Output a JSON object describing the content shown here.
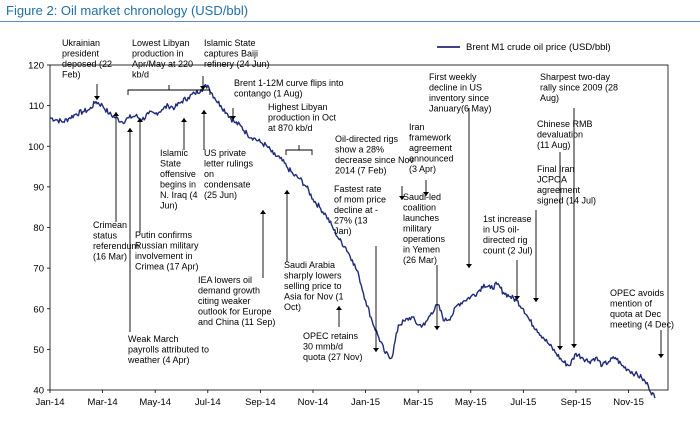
{
  "title": "Figure 2: Oil market chronology (USD/bbl)",
  "chart_data": {
    "type": "line",
    "title": "Figure 2: Oil market chronology (USD/bbl)",
    "ylim": [
      40,
      120
    ],
    "yticks": [
      40,
      50,
      60,
      70,
      80,
      90,
      100,
      110,
      120
    ],
    "x_tick_labels": [
      "Jan-14",
      "Mar-14",
      "May-14",
      "Jul-14",
      "Sep-14",
      "Nov-14",
      "Jan-15",
      "Mar-15",
      "May-15",
      "Jul-15",
      "Sep-15",
      "Nov-15"
    ],
    "legend_position": "top-right",
    "grid": false,
    "color": "#1f2a7a",
    "series": [
      {
        "name": "Brent M1 crude oil price (USD/bbl)",
        "x_months": [
          0,
          0.25,
          0.5,
          0.75,
          1,
          1.25,
          1.5,
          1.75,
          2,
          2.25,
          2.5,
          2.75,
          3,
          3.25,
          3.5,
          3.75,
          4,
          4.25,
          4.5,
          4.75,
          5,
          5.25,
          5.5,
          5.75,
          6,
          6.25,
          6.5,
          6.75,
          7,
          7.25,
          7.5,
          7.75,
          8,
          8.25,
          8.5,
          8.75,
          9,
          9.25,
          9.5,
          9.75,
          10,
          10.25,
          10.5,
          10.75,
          11,
          11.25,
          11.5,
          11.75,
          12,
          12.25,
          12.5,
          12.75,
          13,
          13.25,
          13.5,
          13.75,
          14,
          14.25,
          14.5,
          14.75,
          15,
          15.25,
          15.5,
          15.75,
          16,
          16.25,
          16.5,
          16.75,
          17,
          17.25,
          17.5,
          17.75,
          18,
          18.25,
          18.5,
          18.75,
          19,
          19.25,
          19.5,
          19.75,
          20,
          20.25,
          20.5,
          20.75,
          21,
          21.25,
          21.5,
          21.75,
          22,
          22.25,
          22.5,
          22.75,
          23
        ],
        "values": [
          107,
          106.5,
          106,
          107,
          108,
          108.5,
          109,
          111,
          110,
          108,
          107,
          106,
          107,
          107.5,
          106.5,
          108,
          108,
          109,
          110,
          109.5,
          111,
          112,
          113,
          114,
          115,
          112,
          110,
          108,
          106,
          105,
          103,
          102,
          101,
          100,
          98,
          97,
          95,
          93,
          92,
          90,
          87,
          85,
          83,
          80,
          77,
          75,
          72,
          68,
          62,
          57,
          53,
          49,
          48,
          56,
          57,
          58,
          56,
          56,
          59,
          61,
          57,
          58,
          61,
          62,
          63,
          64,
          66,
          65,
          66,
          64,
          63,
          62,
          60,
          57,
          55,
          53,
          51,
          49,
          47,
          46,
          49,
          48,
          47,
          48,
          46,
          47,
          48,
          46,
          45,
          44,
          43,
          41,
          38
        ],
        "peaks_note": ""
      }
    ],
    "annotations": [
      {
        "id": "ukraine",
        "text": [
          "Ukrainian",
          "president",
          "deposed (22",
          "Feb)"
        ]
      },
      {
        "id": "crimean-ref",
        "text": [
          "Crimean",
          "status",
          "referendum",
          "(16 Mar)"
        ]
      },
      {
        "id": "weak-march",
        "text": [
          "Weak March",
          "payrolls attributed to",
          "weather (4 Apr)"
        ]
      },
      {
        "id": "putin",
        "text": [
          "Putin confirms",
          "Russian military",
          "involvement in",
          "Crimea (17 Apr)"
        ]
      },
      {
        "id": "libya-low",
        "text": [
          "Lowest Libyan",
          "production in",
          "Apr/May at 220",
          "kb/d"
        ]
      },
      {
        "id": "is-offensive",
        "text": [
          "Islamic",
          "State",
          "offensive",
          "begins in",
          "N. Iraq (4",
          "Jun)"
        ]
      },
      {
        "id": "is-baiji",
        "text": [
          "Islamic State",
          "captures Baiji",
          "refinery (24 Jun)"
        ]
      },
      {
        "id": "us-private",
        "text": [
          "US private",
          "letter rulings",
          "on",
          "condensate",
          "(25 Jun)"
        ]
      },
      {
        "id": "contango",
        "text": [
          "Brent 1-12M curve flips into",
          "contango (1 Aug)"
        ]
      },
      {
        "id": "libya-high",
        "text": [
          "Highest Libyan",
          "production in Oct",
          "at 870 kb/d"
        ]
      },
      {
        "id": "iea",
        "text": [
          "IEA lowers oil",
          "demand growth",
          "citing weaker",
          "outlook for Europe",
          "and China (11 Sep)"
        ]
      },
      {
        "id": "saudi-price",
        "text": [
          "Saudi Arabia",
          "sharply lowers",
          "selling price to",
          "Asia for Nov (1",
          "Oct)"
        ]
      },
      {
        "id": "opec-retains",
        "text": [
          "OPEC retains",
          "30 mmb/d",
          "quota (27 Nov)"
        ]
      },
      {
        "id": "rigs-28",
        "text": [
          "Oil-directed rigs",
          "show a 28%",
          "decrease since Nov",
          "2014 (7 Feb)"
        ]
      },
      {
        "id": "fastest-decline",
        "text": [
          "Fastest rate",
          "of mom price",
          "decline at -",
          "27% (13",
          "Jan)"
        ]
      },
      {
        "id": "iran-framework",
        "text": [
          "Iran",
          "framework",
          "agreement",
          "announced",
          "(3 Apr)"
        ]
      },
      {
        "id": "saudi-yemen",
        "text": [
          "Saudi-led",
          "coalition",
          "launches",
          "military",
          "operations",
          "in Yemen",
          "(26 Mar)"
        ]
      },
      {
        "id": "first-weekly",
        "text": [
          "First weekly",
          "decline in US",
          "inventory since",
          "January(6 May)"
        ]
      },
      {
        "id": "sharpest",
        "text": [
          "Sharpest two-day",
          "rally since 2009 (28",
          "Aug)"
        ]
      },
      {
        "id": "rmb",
        "text": [
          "Chinese RMB",
          "devaluation",
          "(11 Aug)"
        ]
      },
      {
        "id": "jcpoa",
        "text": [
          "Final Iran",
          "JCPOA",
          "agreement",
          "signed (14 Jul)"
        ]
      },
      {
        "id": "first-increase",
        "text": [
          "1st increase",
          "in US oil-",
          "directed rig",
          "count (2 Jul)"
        ]
      },
      {
        "id": "opec-quota",
        "text": [
          "OPEC avoids",
          "mention of",
          "quota at Dec",
          "meeting (4 Dec)"
        ]
      }
    ]
  }
}
